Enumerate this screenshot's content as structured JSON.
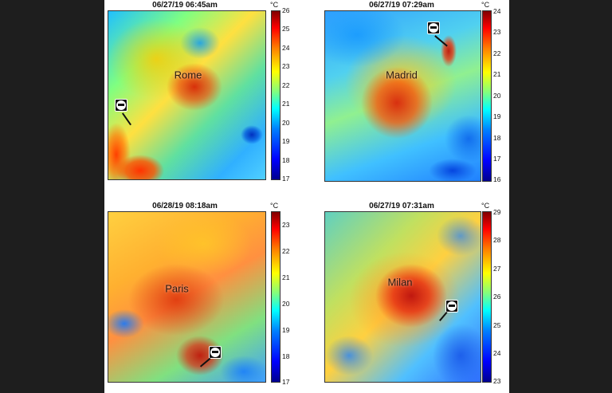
{
  "panels": [
    {
      "title": "06/27/19 06:45am",
      "city": "Rome",
      "unit": "°C",
      "ticks": [
        "26",
        "25",
        "24",
        "23",
        "22",
        "21",
        "20",
        "19",
        "18",
        "17"
      ]
    },
    {
      "title": "06/27/19 07:29am",
      "city": "Madrid",
      "unit": "°C",
      "ticks": [
        "24",
        "23",
        "22",
        "21",
        "20",
        "19",
        "18",
        "17",
        "16"
      ]
    },
    {
      "title": "06/28/19 08:18am",
      "city": "Paris",
      "unit": "°C",
      "ticks": [
        "23",
        "22",
        "21",
        "20",
        "19",
        "18",
        "17"
      ]
    },
    {
      "title": "06/27/19 07:31am",
      "city": "Milan",
      "unit": "°C",
      "ticks": [
        "29",
        "28",
        "27",
        "26",
        "25",
        "24",
        "23"
      ]
    }
  ],
  "icons": {
    "airport": "airplane-icon"
  }
}
